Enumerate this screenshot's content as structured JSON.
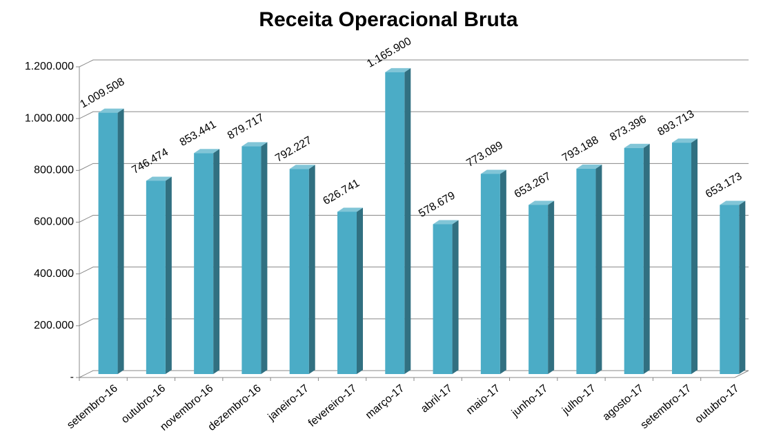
{
  "chart_data": {
    "type": "bar3d",
    "title": "Receita Operacional Bruta",
    "categories": [
      "setembro-16",
      "outubro-16",
      "novembro-16",
      "dezembro-16",
      "janeiro-17",
      "fevereiro-17",
      "março-17",
      "abril-17",
      "maio-17",
      "junho-17",
      "julho-17",
      "agosto-17",
      "setembro-17",
      "outubro-17"
    ],
    "values": [
      1009508,
      746474,
      853441,
      879717,
      792227,
      626741,
      1165900,
      578679,
      773089,
      653267,
      793188,
      873396,
      893713,
      653173
    ],
    "value_labels": [
      "1.009.508",
      "746.474",
      "853.441",
      "879.717",
      "792.227",
      "626.741",
      "1.165.900",
      "578.679",
      "773.089",
      "653.267",
      "793.188",
      "873.396",
      "893.713",
      "653.173"
    ],
    "color": "#4bacc6",
    "ylim": [
      0,
      1200000
    ],
    "yticks": [
      {
        "value": 0,
        "label": "-"
      },
      {
        "value": 200000,
        "label": "200.000"
      },
      {
        "value": 400000,
        "label": "400.000"
      },
      {
        "value": 600000,
        "label": "600.000"
      },
      {
        "value": 800000,
        "label": "800.000"
      },
      {
        "value": 1000000,
        "label": "1.000.000"
      },
      {
        "value": 1200000,
        "label": "1.200.000"
      }
    ],
    "grid": true
  }
}
